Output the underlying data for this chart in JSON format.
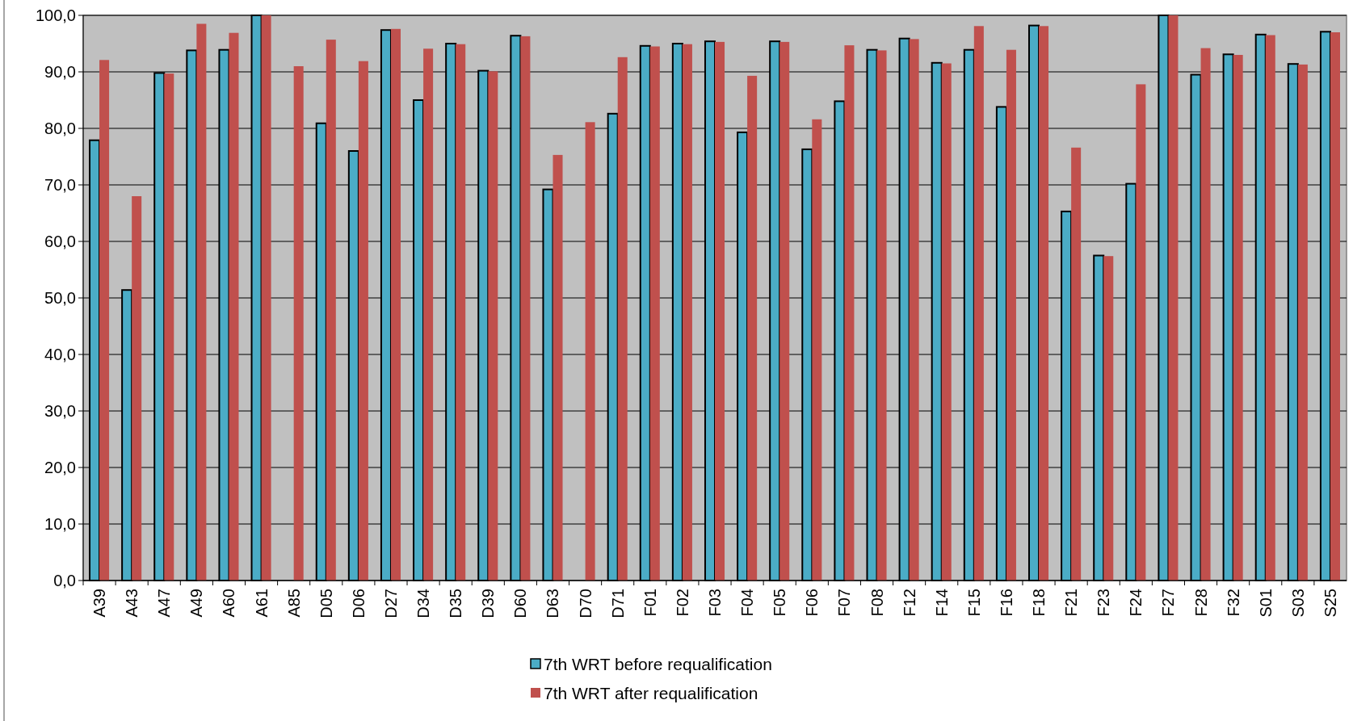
{
  "chart_data": {
    "type": "bar",
    "categories": [
      "A39",
      "A43",
      "A47",
      "A49",
      "A60",
      "A61",
      "A85",
      "D05",
      "D06",
      "D27",
      "D34",
      "D35",
      "D39",
      "D60",
      "D63",
      "D70",
      "D71",
      "F01",
      "F02",
      "F03",
      "F04",
      "F05",
      "F06",
      "F07",
      "F08",
      "F12",
      "F14",
      "F15",
      "F16",
      "F18",
      "F21",
      "F23",
      "F24",
      "F27",
      "F28",
      "F32",
      "S01",
      "S03",
      "S25"
    ],
    "series": [
      {
        "name": "7th WRT before requalification",
        "color": "#4bacc6",
        "values": [
          77.9,
          51.4,
          89.8,
          93.8,
          93.9,
          100,
          null,
          80.9,
          76.0,
          97.4,
          85.0,
          95.0,
          90.2,
          96.4,
          69.2,
          null,
          82.6,
          94.6,
          95.0,
          95.4,
          79.3,
          95.4,
          76.3,
          84.8,
          93.9,
          95.9,
          91.6,
          93.9,
          83.8,
          98.2,
          65.3,
          57.5,
          70.2,
          100,
          89.5,
          93.1,
          96.6,
          91.4,
          97.1
        ]
      },
      {
        "name": "7th WRT after requalification",
        "color": "#c0504d",
        "values": [
          92.1,
          68.0,
          89.7,
          98.5,
          96.9,
          100,
          91.0,
          95.7,
          91.9,
          97.6,
          94.1,
          94.9,
          90.1,
          96.3,
          75.3,
          81.1,
          92.6,
          94.5,
          94.9,
          95.3,
          89.3,
          95.3,
          81.6,
          94.7,
          93.8,
          95.8,
          91.5,
          98.1,
          93.9,
          98.1,
          76.6,
          57.4,
          87.8,
          100,
          94.2,
          93.0,
          96.5,
          91.3,
          97.0
        ]
      }
    ],
    "ylim": [
      0,
      100
    ],
    "yticks": [
      {
        "value": 0,
        "label": "0,0"
      },
      {
        "value": 10,
        "label": "10,0"
      },
      {
        "value": 20,
        "label": "20,0"
      },
      {
        "value": 30,
        "label": "30,0"
      },
      {
        "value": 40,
        "label": "40,0"
      },
      {
        "value": 50,
        "label": "50,0"
      },
      {
        "value": 60,
        "label": "60,0"
      },
      {
        "value": 70,
        "label": "70,0"
      },
      {
        "value": 80,
        "label": "80,0"
      },
      {
        "value": 90,
        "label": "90,0"
      },
      {
        "value": 100,
        "label": "100,0"
      }
    ],
    "grid": "y",
    "legend": "bottom"
  }
}
